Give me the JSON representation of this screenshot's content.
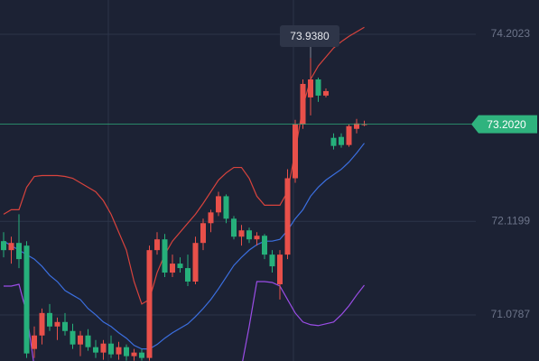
{
  "chart_data": {
    "type": "candlestick",
    "ylim": [
      70.566,
      74.584
    ],
    "yticks": [
      71.0787,
      72.1199,
      74.2023
    ],
    "grid": true,
    "up_color": "#e8504a",
    "down_color": "#26b07b",
    "open": [
      71.9,
      71.8,
      71.88,
      71.85,
      70.7,
      70.85,
      71.1,
      70.95,
      71.0,
      70.9,
      70.75,
      70.85,
      70.72,
      70.66,
      70.76,
      70.64,
      70.72,
      70.62,
      70.66,
      70.6,
      71.8,
      71.92,
      71.55,
      71.65,
      71.6,
      71.45,
      71.88,
      72.1,
      72.22,
      72.4,
      72.15,
      71.95,
      72.02,
      71.92,
      71.96,
      71.75,
      71.42,
      71.75,
      72.6,
      73.2,
      73.5,
      73.7,
      73.52,
      73.05,
      73.06,
      72.97,
      73.15,
      73.2
    ],
    "high": [
      72.0,
      71.95,
      72.2,
      71.9,
      70.95,
      71.15,
      71.2,
      71.05,
      71.1,
      70.98,
      70.9,
      70.92,
      70.8,
      70.8,
      70.85,
      70.78,
      70.75,
      70.7,
      70.7,
      71.85,
      72.0,
      71.98,
      71.75,
      71.72,
      71.75,
      71.95,
      72.15,
      72.25,
      72.45,
      72.42,
      72.18,
      72.08,
      72.05,
      72.0,
      71.98,
      71.8,
      71.8,
      72.7,
      73.25,
      73.7,
      73.938,
      73.72,
      73.6,
      73.1,
      73.1,
      73.2,
      73.26,
      73.24
    ],
    "low": [
      71.72,
      71.65,
      71.6,
      70.6,
      70.6,
      70.75,
      70.9,
      70.8,
      70.85,
      70.7,
      70.62,
      70.68,
      70.6,
      70.58,
      70.6,
      70.58,
      70.57,
      70.57,
      70.57,
      70.57,
      71.75,
      71.5,
      71.5,
      71.55,
      71.4,
      71.42,
      71.8,
      72.0,
      72.18,
      72.1,
      71.92,
      71.85,
      71.88,
      71.85,
      71.7,
      71.55,
      71.25,
      71.7,
      72.55,
      73.15,
      73.3,
      73.45,
      73.5,
      72.92,
      72.94,
      72.95,
      73.1,
      73.18
    ],
    "close": [
      71.8,
      71.88,
      71.7,
      70.65,
      70.85,
      71.1,
      70.95,
      71.0,
      70.9,
      70.75,
      70.85,
      70.72,
      70.66,
      70.76,
      70.64,
      70.72,
      70.62,
      70.66,
      70.6,
      71.8,
      71.92,
      71.55,
      71.65,
      71.6,
      71.45,
      71.88,
      72.1,
      72.22,
      72.4,
      72.15,
      71.95,
      72.02,
      71.92,
      71.96,
      71.75,
      71.62,
      71.75,
      72.6,
      73.2,
      73.65,
      73.7,
      73.52,
      73.57,
      72.96,
      72.97,
      73.18,
      73.21,
      73.202
    ],
    "bands": [
      {
        "color": "#d8433d",
        "values": [
          72.2,
          72.25,
          72.25,
          72.5,
          72.62,
          72.63,
          72.63,
          72.63,
          72.62,
          72.6,
          72.55,
          72.5,
          72.45,
          72.35,
          72.2,
          72.0,
          71.8,
          71.45,
          71.2,
          71.25,
          71.55,
          71.75,
          71.9,
          72.0,
          72.1,
          72.2,
          72.32,
          72.45,
          72.58,
          72.66,
          72.72,
          72.72,
          72.6,
          72.4,
          72.3,
          72.3,
          72.3,
          72.45,
          72.9,
          73.4,
          73.7,
          73.85,
          73.95,
          74.05,
          74.12,
          74.18,
          74.23,
          74.28
        ]
      },
      {
        "color": "#3b6fe0",
        "values": [
          71.9,
          71.85,
          71.8,
          71.75,
          71.7,
          71.62,
          71.52,
          71.45,
          71.35,
          71.3,
          71.25,
          71.15,
          71.08,
          71.0,
          70.95,
          70.88,
          70.82,
          70.74,
          70.7,
          70.7,
          70.75,
          70.82,
          70.88,
          70.93,
          70.98,
          71.06,
          71.15,
          71.25,
          71.37,
          71.5,
          71.63,
          71.72,
          71.8,
          71.86,
          71.9,
          71.9,
          71.92,
          72.02,
          72.15,
          72.25,
          72.4,
          72.5,
          72.58,
          72.64,
          72.7,
          72.78,
          72.88,
          72.99
        ]
      },
      {
        "color": "#9a4de6",
        "values": [
          71.4,
          71.4,
          71.42,
          71.1,
          70.5,
          null,
          null,
          null,
          null,
          null,
          null,
          null,
          null,
          null,
          null,
          null,
          null,
          null,
          null,
          null,
          null,
          null,
          null,
          null,
          null,
          null,
          null,
          null,
          null,
          null,
          null,
          70.5,
          70.95,
          71.45,
          71.45,
          71.44,
          71.4,
          71.25,
          71.1,
          71.0,
          70.97,
          70.96,
          70.98,
          71.0,
          71.08,
          71.18,
          71.3,
          71.41
        ]
      }
    ],
    "last_price": {
      "value": 73.202,
      "label": "73.2020",
      "color": "#2fb37e"
    },
    "max_label": {
      "value": 73.938,
      "label": "73.9380"
    }
  }
}
